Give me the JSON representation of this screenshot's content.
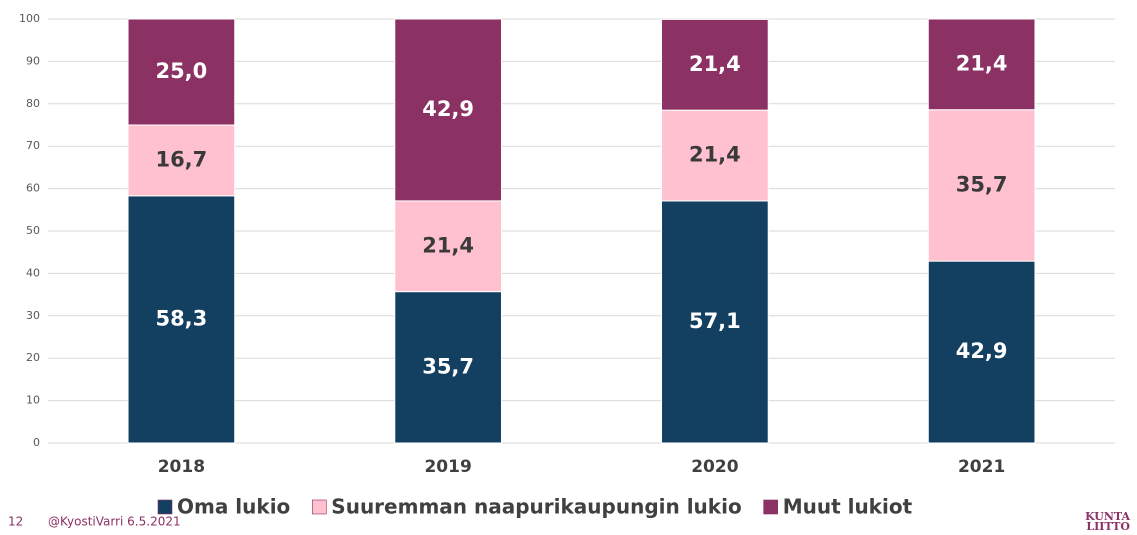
{
  "chart_data": {
    "type": "stacked_bar",
    "categories": [
      "2018",
      "2019",
      "2020",
      "2021"
    ],
    "series": [
      {
        "name": "Oma lukio",
        "color": "#133f60",
        "values": [
          58.3,
          35.7,
          57.1,
          42.9
        ],
        "value_labels": [
          "58,3",
          "35,7",
          "57,1",
          "42,9"
        ],
        "label_color": "#ffffff"
      },
      {
        "name": "Suuremman naapurikaupungin lukio",
        "color": "#ffc0cf",
        "values": [
          16.7,
          21.4,
          21.4,
          35.7
        ],
        "value_labels": [
          "16,7",
          "21,4",
          "21,4",
          "35,7"
        ],
        "label_color": "#3a3a3a"
      },
      {
        "name": "Muut lukiot",
        "color": "#8b3163",
        "values": [
          25.0,
          42.9,
          21.4,
          21.4
        ],
        "value_labels": [
          "25,0",
          "42,9",
          "21,4",
          "21,4"
        ],
        "label_color": "#ffffff"
      }
    ],
    "ylim": [
      0,
      100
    ],
    "yticks": [
      0,
      10,
      20,
      30,
      40,
      50,
      60,
      70,
      80,
      90,
      100
    ],
    "grid": true,
    "legend": "bottom",
    "footer_page": "12",
    "footer_text": "@KyostiVarri 6.5.2021",
    "logo": [
      "KUNTA",
      "LIITTO"
    ]
  }
}
